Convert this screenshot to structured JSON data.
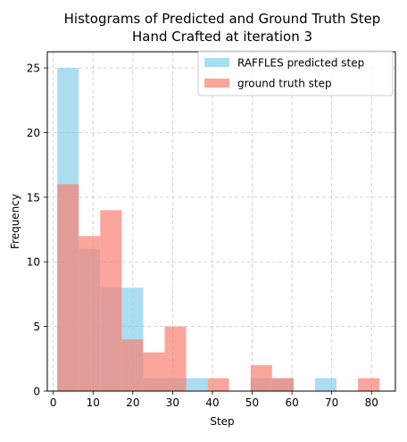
{
  "chart_data": {
    "type": "bar",
    "title_line1": "Histograms of Predicted and Ground Truth Step",
    "title_line2": "Hand Crafted at iteration 3",
    "xlabel": "Step",
    "ylabel": "Frequency",
    "xlim": [
      -1.5,
      86.0
    ],
    "ylim": [
      0,
      26.25
    ],
    "xticks": [
      0,
      10,
      20,
      30,
      40,
      50,
      60,
      70,
      80
    ],
    "yticks": [
      0,
      5,
      10,
      15,
      20,
      25
    ],
    "grid": true,
    "legend_position": "top-right",
    "series": [
      {
        "name": "RAFFLES predicted step",
        "color": "#87CEEB",
        "opacity": 0.7,
        "bins": [
          {
            "x0": 1.0,
            "x1": 6.4,
            "count": 25
          },
          {
            "x0": 6.4,
            "x1": 11.8,
            "count": 11
          },
          {
            "x0": 11.8,
            "x1": 17.2,
            "count": 8
          },
          {
            "x0": 17.2,
            "x1": 22.6,
            "count": 8
          },
          {
            "x0": 22.6,
            "x1": 28.0,
            "count": 1
          },
          {
            "x0": 28.0,
            "x1": 33.4,
            "count": 1
          },
          {
            "x0": 33.4,
            "x1": 38.8,
            "count": 1
          },
          {
            "x0": 38.8,
            "x1": 44.2,
            "count": 0
          },
          {
            "x0": 44.2,
            "x1": 49.6,
            "count": 0
          },
          {
            "x0": 49.6,
            "x1": 55.0,
            "count": 1
          },
          {
            "x0": 55.0,
            "x1": 60.4,
            "count": 1
          },
          {
            "x0": 60.4,
            "x1": 65.8,
            "count": 0
          },
          {
            "x0": 65.8,
            "x1": 71.2,
            "count": 1
          },
          {
            "x0": 71.2,
            "x1": 76.6,
            "count": 0
          },
          {
            "x0": 76.6,
            "x1": 82.0,
            "count": 0
          }
        ]
      },
      {
        "name": "ground truth step",
        "color": "#FA8072",
        "opacity": 0.7,
        "bins": [
          {
            "x0": 1.0,
            "x1": 6.4,
            "count": 16
          },
          {
            "x0": 6.4,
            "x1": 11.8,
            "count": 12
          },
          {
            "x0": 11.8,
            "x1": 17.2,
            "count": 14
          },
          {
            "x0": 17.2,
            "x1": 22.6,
            "count": 4
          },
          {
            "x0": 22.6,
            "x1": 28.0,
            "count": 3
          },
          {
            "x0": 28.0,
            "x1": 33.4,
            "count": 5
          },
          {
            "x0": 33.4,
            "x1": 38.8,
            "count": 0
          },
          {
            "x0": 38.8,
            "x1": 44.2,
            "count": 1
          },
          {
            "x0": 44.2,
            "x1": 49.6,
            "count": 0
          },
          {
            "x0": 49.6,
            "x1": 55.0,
            "count": 2
          },
          {
            "x0": 55.0,
            "x1": 60.4,
            "count": 1
          },
          {
            "x0": 60.4,
            "x1": 65.8,
            "count": 0
          },
          {
            "x0": 65.8,
            "x1": 71.2,
            "count": 0
          },
          {
            "x0": 71.2,
            "x1": 76.6,
            "count": 0
          },
          {
            "x0": 76.6,
            "x1": 82.0,
            "count": 1
          }
        ]
      }
    ]
  }
}
